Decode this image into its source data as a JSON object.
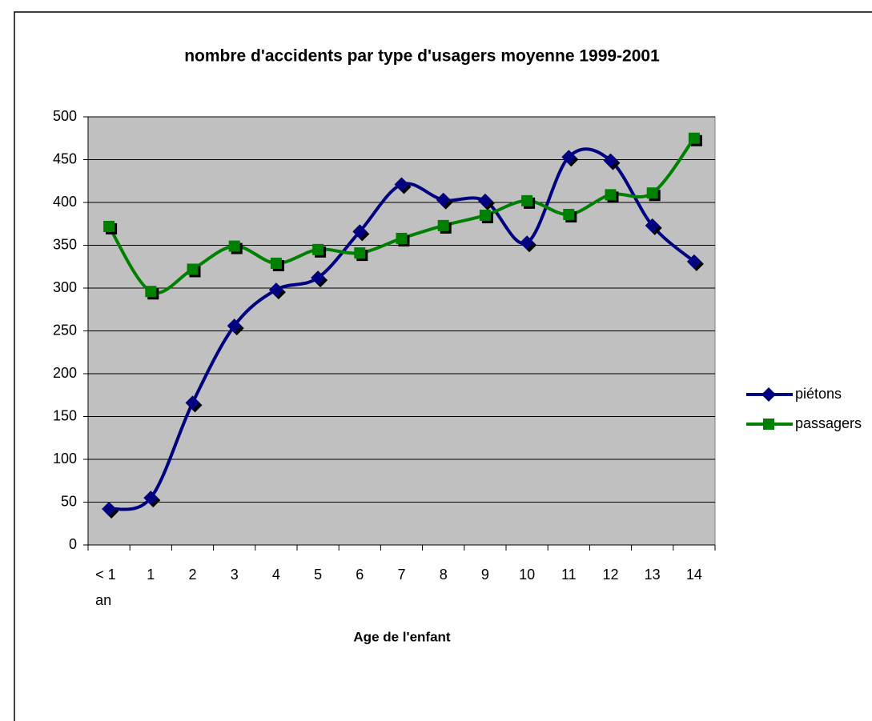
{
  "chart_data": {
    "type": "line",
    "title": "nombre d'accidents par type d'usagers moyenne 1999-2001",
    "xlabel": "Age de l'enfant",
    "categories": [
      "< 1 an",
      "1",
      "2",
      "3",
      "4",
      "5",
      "6",
      "7",
      "8",
      "9",
      "10",
      "11",
      "12",
      "13",
      "14"
    ],
    "series": [
      {
        "name": "piétons",
        "color": "#000080",
        "marker": "diamond",
        "values": [
          42,
          55,
          166,
          256,
          298,
          312,
          366,
          421,
          403,
          402,
          353,
          453,
          449,
          373,
          331
        ]
      },
      {
        "name": "passagers",
        "color": "#008000",
        "marker": "square",
        "values": [
          372,
          296,
          322,
          349,
          329,
          345,
          341,
          358,
          373,
          385,
          402,
          386,
          409,
          411,
          475
        ]
      }
    ],
    "ylim": [
      0,
      500
    ],
    "yticks": [
      0,
      50,
      100,
      150,
      200,
      250,
      300,
      350,
      400,
      450,
      500
    ],
    "grid": true,
    "smooth": true,
    "legend": "right"
  }
}
